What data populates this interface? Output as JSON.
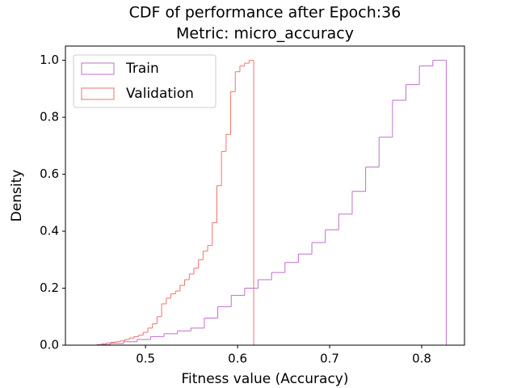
{
  "chart_data": {
    "type": "histogram",
    "cumulative": true,
    "histtype": "step",
    "title": "CDF of performance after Epoch:36",
    "subtitle": "Metric: micro_accuracy",
    "x_label": "Fitness value (Accuracy)",
    "y_label": "Density",
    "xlim": [
      0.413,
      0.8465
    ],
    "ylim": [
      0,
      1.05
    ],
    "xticks": [
      0.5,
      0.6,
      0.7,
      0.8
    ],
    "yticks": [
      {
        "value": 0,
        "label": "0.0"
      },
      0.2,
      0.4,
      0.6,
      0.8,
      {
        "value": 1,
        "label": "1.0"
      }
    ],
    "grid": false,
    "legend": "upper left",
    "series": [
      {
        "name": "Train",
        "color": "#bf6fcc",
        "bins": [
          0.4325,
          0.4471,
          0.4617,
          0.4763,
          0.4909,
          0.5055,
          0.5201,
          0.5347,
          0.5493,
          0.5639,
          0.5785,
          0.5931,
          0.6077,
          0.6223,
          0.6369,
          0.6515,
          0.6661,
          0.6807,
          0.6953,
          0.7099,
          0.7245,
          0.7391,
          0.7537,
          0.7683,
          0.7829,
          0.7975,
          0.8121,
          0.8267
        ],
        "values": [
          0,
          0.002,
          0.006,
          0.012,
          0.02,
          0.03,
          0.04,
          0.05,
          0.06,
          0.095,
          0.135,
          0.175,
          0.2,
          0.23,
          0.255,
          0.29,
          0.32,
          0.36,
          0.405,
          0.46,
          0.54,
          0.625,
          0.73,
          0.86,
          0.915,
          0.98,
          1.0
        ]
      },
      {
        "name": "Validation",
        "color": "#f4716b",
        "bins": [
          0.4325,
          0.4375,
          0.4425,
          0.4475,
          0.4525,
          0.4575,
          0.4625,
          0.4675,
          0.4725,
          0.4775,
          0.4825,
          0.4875,
          0.4925,
          0.4975,
          0.5025,
          0.5075,
          0.5125,
          0.5175,
          0.5225,
          0.5275,
          0.5325,
          0.5375,
          0.5425,
          0.5475,
          0.5525,
          0.5575,
          0.5625,
          0.5675,
          0.5725,
          0.5775,
          0.5825,
          0.5875,
          0.5925,
          0.5975,
          0.6025,
          0.6075,
          0.6125,
          0.6175
        ],
        "values": [
          0,
          0,
          0,
          0,
          0.005,
          0.008,
          0.01,
          0.012,
          0.015,
          0.02,
          0.025,
          0.03,
          0.035,
          0.045,
          0.06,
          0.075,
          0.1,
          0.145,
          0.165,
          0.18,
          0.19,
          0.21,
          0.23,
          0.25,
          0.27,
          0.3,
          0.33,
          0.35,
          0.43,
          0.56,
          0.68,
          0.74,
          0.89,
          0.96,
          0.98,
          0.99,
          1.0
        ]
      }
    ]
  }
}
